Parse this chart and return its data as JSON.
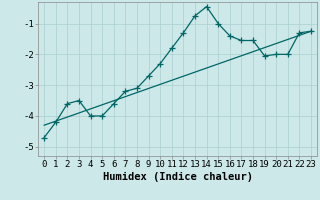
{
  "xlabel": "Humidex (Indice chaleur)",
  "ylabel": "",
  "background_color": "#cce8e8",
  "grid_color": "#aacfcf",
  "line_color": "#006666",
  "x_values": [
    0,
    1,
    2,
    3,
    4,
    5,
    6,
    7,
    8,
    9,
    10,
    11,
    12,
    13,
    14,
    15,
    16,
    17,
    18,
    19,
    20,
    21,
    22,
    23
  ],
  "y_values": [
    -4.7,
    -4.2,
    -3.6,
    -3.5,
    -4.0,
    -4.0,
    -3.6,
    -3.2,
    -3.1,
    -2.7,
    -2.3,
    -1.8,
    -1.3,
    -0.75,
    -0.45,
    -1.0,
    -1.4,
    -1.55,
    -1.55,
    -2.05,
    -2.0,
    -2.0,
    -1.3,
    -1.25
  ],
  "trend_x": [
    0,
    23
  ],
  "trend_y": [
    -4.3,
    -1.25
  ],
  "ylim": [
    -5.3,
    -0.3
  ],
  "xlim": [
    -0.5,
    23.5
  ],
  "yticks": [
    -5,
    -4,
    -3,
    -2,
    -1
  ],
  "xticks": [
    0,
    1,
    2,
    3,
    4,
    5,
    6,
    7,
    8,
    9,
    10,
    11,
    12,
    13,
    14,
    15,
    16,
    17,
    18,
    19,
    20,
    21,
    22,
    23
  ],
  "tick_fontsize": 6.5,
  "label_fontsize": 7.5,
  "figsize": [
    3.2,
    2.0
  ],
  "dpi": 100
}
